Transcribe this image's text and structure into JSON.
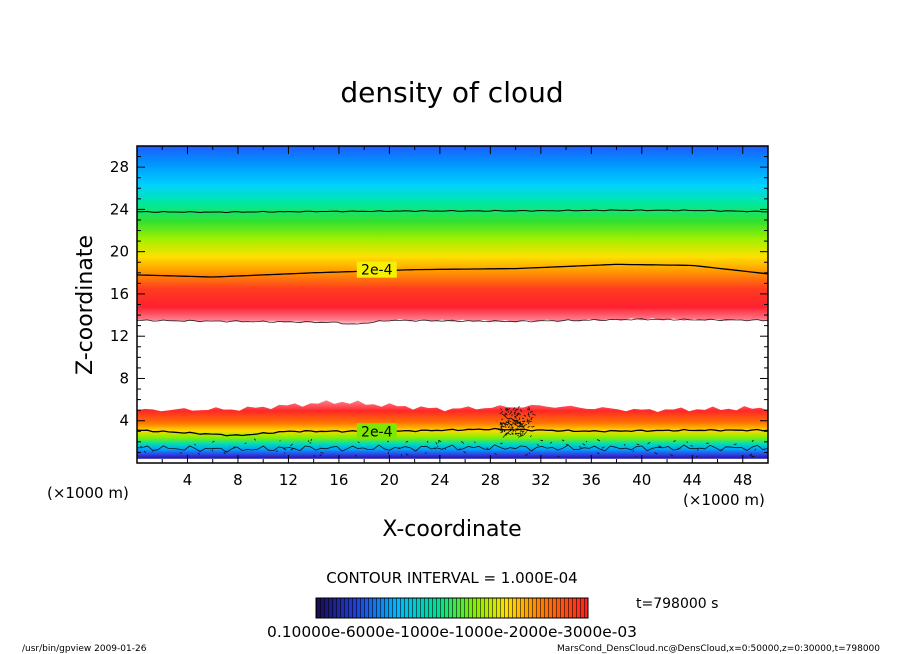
{
  "chart_data": {
    "type": "heatmap",
    "title": "density of cloud",
    "xlabel": "X-coordinate",
    "ylabel": "Z-coordinate",
    "x_unit": "(×1000 m)",
    "y_unit": "(×1000 m)",
    "xlim": [
      0,
      50
    ],
    "ylim": [
      0,
      30
    ],
    "x_ticks": [
      "4",
      "8",
      "12",
      "16",
      "20",
      "24",
      "28",
      "32",
      "36",
      "40",
      "44",
      "48"
    ],
    "y_ticks": [
      "4",
      "8",
      "12",
      "16",
      "20",
      "24",
      "28"
    ],
    "colormap": [
      "#1a0a8c",
      "#3050ff",
      "#00c8ff",
      "#40ff40",
      "#ffff00",
      "#ffa000",
      "#ff2020"
    ],
    "upper_layer": {
      "top_edge_z": 30,
      "green_center_z": 21.5,
      "yellow_z": 18.3,
      "red_peak_z": 15.5,
      "lower_edge_z": 13.5,
      "contour_2e4_z_at_x": [
        [
          0,
          17.8
        ],
        [
          6,
          17.6
        ],
        [
          14,
          18.0
        ],
        [
          22,
          18.3
        ],
        [
          30,
          18.4
        ],
        [
          38,
          18.8
        ],
        [
          44,
          18.7
        ],
        [
          50,
          17.9
        ]
      ],
      "contour_2e4_upper_z": 23.8
    },
    "lower_layer": {
      "top_edge_z_at_x": [
        [
          0,
          5.0
        ],
        [
          8,
          5.1
        ],
        [
          16,
          5.8
        ],
        [
          24,
          5.1
        ],
        [
          32,
          5.4
        ],
        [
          40,
          5.0
        ],
        [
          50,
          5.2
        ]
      ],
      "red_center_z": 4.0,
      "contour_2e4_z_at_x": [
        [
          0,
          3.1
        ],
        [
          8,
          2.6
        ],
        [
          12,
          3.0
        ],
        [
          20,
          3.0
        ],
        [
          28,
          3.2
        ],
        [
          36,
          3.0
        ],
        [
          44,
          3.1
        ],
        [
          50,
          3.1
        ]
      ],
      "contour_lower_z": 1.4,
      "bottom_z": 0.4
    },
    "contour_labels": [
      {
        "text": "2e-4",
        "x": 19,
        "z": 18.3
      },
      {
        "text": "2e-4",
        "x": 19,
        "z": 3.0
      }
    ],
    "contour_interval_text": "CONTOUR INTERVAL = 1.000E-04",
    "time_text": "t=798000  s",
    "colorbar_labels_text": "0.10000e-6000e-1000e-1000e-2000e-3000e-03",
    "footer_left": "/usr/bin/gpview   2009-01-26",
    "footer_right": "MarsCond_DensCloud.nc@DensCloud,x=0:50000,z=0:30000,t=798000"
  }
}
